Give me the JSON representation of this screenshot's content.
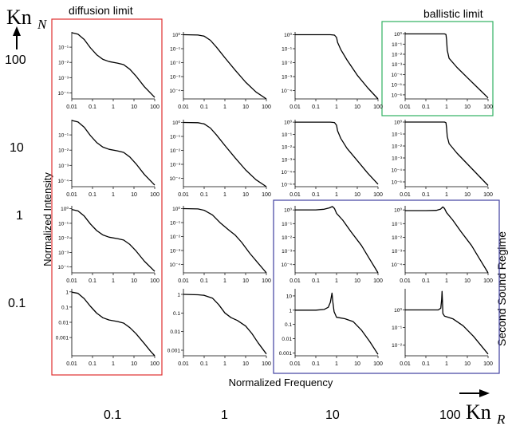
{
  "labels": {
    "y_axis_symbol": "Kn",
    "y_axis_sub": "N",
    "x_axis_symbol": "Kn",
    "x_axis_sub": "R",
    "diffusion_limit": "diffusion limit",
    "ballistic_limit": "ballistic limit",
    "second_sound": "Second Sound Regime",
    "ylabel": "Normalized Intensity",
    "xlabel": "Normalized Frequency"
  },
  "row_labels": [
    "100",
    "10",
    "1",
    "0.1"
  ],
  "col_labels": [
    "0.1",
    "1",
    "10",
    "100"
  ],
  "colors": {
    "diffusion_box": "#e03030",
    "ballistic_box": "#30b060",
    "second_sound_box": "#4040a0",
    "curve": "#000000"
  },
  "chart_data": {
    "type": "line",
    "layout": "4x4 grid of log-log plots",
    "x_ticks": [
      "0.01",
      "0.1",
      "1",
      "10",
      "100"
    ],
    "x_scale": "log",
    "y_scale": "log",
    "xlim": [
      0.01,
      100
    ],
    "panels": [
      {
        "row": 0,
        "col": 0,
        "yticks": [
          [
            -1,
            "10⁻¹"
          ],
          [
            -2,
            "10⁻²"
          ],
          [
            -3,
            "10⁻³"
          ],
          [
            -4,
            "10⁻⁴"
          ]
        ],
        "ylim": [
          -4.4,
          0
        ],
        "curve": [
          [
            -2,
            -0.05
          ],
          [
            -1.7,
            -0.15
          ],
          [
            -1.4,
            -0.5
          ],
          [
            -1.1,
            -1.05
          ],
          [
            -0.8,
            -1.5
          ],
          [
            -0.5,
            -1.8
          ],
          [
            -0.2,
            -1.95
          ],
          [
            0.2,
            -2.05
          ],
          [
            0.5,
            -2.15
          ],
          [
            0.8,
            -2.45
          ],
          [
            1.1,
            -2.9
          ],
          [
            1.5,
            -3.6
          ],
          [
            2,
            -4.3
          ]
        ]
      },
      {
        "row": 0,
        "col": 1,
        "yticks": [
          [
            0,
            "10⁰"
          ],
          [
            -1,
            "10⁻¹"
          ],
          [
            -2,
            "10⁻²"
          ],
          [
            -3,
            "10⁻³"
          ],
          [
            -4,
            "10⁻⁴"
          ]
        ],
        "ylim": [
          -4.6,
          0.2
        ],
        "curve": [
          [
            -2,
            0
          ],
          [
            -1.3,
            -0.02
          ],
          [
            -1,
            -0.1
          ],
          [
            -0.7,
            -0.4
          ],
          [
            -0.4,
            -0.9
          ],
          [
            0,
            -1.65
          ],
          [
            0.5,
            -2.55
          ],
          [
            1,
            -3.4
          ],
          [
            1.5,
            -4.1
          ],
          [
            2,
            -4.6
          ]
        ]
      },
      {
        "row": 0,
        "col": 2,
        "yticks": [
          [
            0,
            "10⁰"
          ],
          [
            -1,
            "10⁻¹"
          ],
          [
            -2,
            "10⁻²"
          ],
          [
            -3,
            "10⁻³"
          ],
          [
            -4,
            "10⁻⁴"
          ]
        ],
        "ylim": [
          -4.6,
          0.2
        ],
        "curve": [
          [
            -2,
            0
          ],
          [
            -0.3,
            0
          ],
          [
            -0.1,
            -0.03
          ],
          [
            0,
            -0.2
          ],
          [
            0.05,
            -0.55
          ],
          [
            0.2,
            -1.05
          ],
          [
            0.5,
            -1.8
          ],
          [
            1,
            -2.9
          ],
          [
            1.5,
            -3.8
          ],
          [
            2,
            -4.6
          ]
        ]
      },
      {
        "row": 0,
        "col": 3,
        "yticks": [
          [
            0,
            "10⁰"
          ],
          [
            -1,
            "10⁻¹"
          ],
          [
            -2,
            "10⁻²"
          ],
          [
            -3,
            "10⁻³"
          ],
          [
            -4,
            "10⁻⁴"
          ],
          [
            -5,
            "10⁻⁵"
          ],
          [
            -6,
            "10⁻⁶"
          ]
        ],
        "ylim": [
          -6.4,
          0.2
        ],
        "curve": [
          [
            -2,
            0
          ],
          [
            -0.1,
            0
          ],
          [
            -0.03,
            -0.05
          ],
          [
            0,
            -0.6
          ],
          [
            0.03,
            -1.6
          ],
          [
            0.12,
            -2.4
          ],
          [
            0.5,
            -3.3
          ],
          [
            1,
            -4.3
          ],
          [
            1.5,
            -5.3
          ],
          [
            2,
            -6.3
          ]
        ]
      },
      {
        "row": 1,
        "col": 0,
        "yticks": [
          [
            -1,
            "10⁻¹"
          ],
          [
            -2,
            "10⁻²"
          ],
          [
            -3,
            "10⁻³"
          ],
          [
            -4,
            "10⁻⁴"
          ]
        ],
        "ylim": [
          -4.4,
          0
        ],
        "curve": [
          [
            -2,
            -0.05
          ],
          [
            -1.7,
            -0.15
          ],
          [
            -1.4,
            -0.5
          ],
          [
            -1.1,
            -1.05
          ],
          [
            -0.8,
            -1.5
          ],
          [
            -0.5,
            -1.8
          ],
          [
            -0.2,
            -1.95
          ],
          [
            0.2,
            -2.05
          ],
          [
            0.5,
            -2.15
          ],
          [
            0.8,
            -2.45
          ],
          [
            1.1,
            -2.9
          ],
          [
            1.5,
            -3.6
          ],
          [
            2,
            -4.3
          ]
        ]
      },
      {
        "row": 1,
        "col": 1,
        "yticks": [
          [
            0,
            "10⁰"
          ],
          [
            -1,
            "10⁻¹"
          ],
          [
            -2,
            "10⁻²"
          ],
          [
            -3,
            "10⁻³"
          ],
          [
            -4,
            "10⁻⁴"
          ]
        ],
        "ylim": [
          -4.6,
          0.2
        ],
        "curve": [
          [
            -2,
            0
          ],
          [
            -1.3,
            -0.02
          ],
          [
            -1,
            -0.1
          ],
          [
            -0.7,
            -0.4
          ],
          [
            -0.4,
            -0.9
          ],
          [
            0,
            -1.65
          ],
          [
            0.5,
            -2.55
          ],
          [
            1,
            -3.4
          ],
          [
            1.5,
            -4.1
          ],
          [
            2,
            -4.6
          ]
        ]
      },
      {
        "row": 1,
        "col": 2,
        "yticks": [
          [
            0,
            "10⁰"
          ],
          [
            -1,
            "10⁻¹"
          ],
          [
            -2,
            "10⁻²"
          ],
          [
            -3,
            "10⁻³"
          ],
          [
            -4,
            "10⁻⁴"
          ],
          [
            -5,
            "10⁻⁵"
          ]
        ],
        "ylim": [
          -5.2,
          0.2
        ],
        "curve": [
          [
            -2,
            0
          ],
          [
            -0.3,
            0
          ],
          [
            -0.1,
            -0.03
          ],
          [
            0,
            -0.25
          ],
          [
            0.05,
            -0.7
          ],
          [
            0.2,
            -1.3
          ],
          [
            0.5,
            -2.1
          ],
          [
            1,
            -3.1
          ],
          [
            1.5,
            -4.1
          ],
          [
            2,
            -5
          ]
        ]
      },
      {
        "row": 1,
        "col": 3,
        "yticks": [
          [
            0,
            "10⁰"
          ],
          [
            -1,
            "10⁻¹"
          ],
          [
            -2,
            "10⁻²"
          ],
          [
            -3,
            "10⁻³"
          ],
          [
            -4,
            "10⁻⁴"
          ],
          [
            -5,
            "10⁻⁵"
          ]
        ],
        "ylim": [
          -5.4,
          0.2
        ],
        "curve": [
          [
            -2,
            0
          ],
          [
            -0.1,
            0
          ],
          [
            -0.03,
            -0.05
          ],
          [
            0,
            -0.5
          ],
          [
            0.03,
            -1.2
          ],
          [
            0.12,
            -1.8
          ],
          [
            0.5,
            -2.6
          ],
          [
            1,
            -3.5
          ],
          [
            1.5,
            -4.4
          ],
          [
            2,
            -5.3
          ]
        ]
      },
      {
        "row": 2,
        "col": 0,
        "yticks": [
          [
            0,
            "10⁰"
          ],
          [
            -1,
            "10⁻¹"
          ],
          [
            -2,
            "10⁻²"
          ],
          [
            -3,
            "10⁻³"
          ],
          [
            -4,
            "10⁻⁴"
          ]
        ],
        "ylim": [
          -4.4,
          0.2
        ],
        "curve": [
          [
            -2,
            -0.05
          ],
          [
            -1.7,
            -0.15
          ],
          [
            -1.4,
            -0.5
          ],
          [
            -1.1,
            -1.05
          ],
          [
            -0.8,
            -1.5
          ],
          [
            -0.5,
            -1.8
          ],
          [
            -0.2,
            -1.95
          ],
          [
            0.2,
            -2.05
          ],
          [
            0.5,
            -2.15
          ],
          [
            0.8,
            -2.45
          ],
          [
            1.1,
            -2.9
          ],
          [
            1.5,
            -3.6
          ],
          [
            2,
            -4.3
          ]
        ]
      },
      {
        "row": 2,
        "col": 1,
        "yticks": [
          [
            0,
            "10⁰"
          ],
          [
            -1,
            "10⁻¹"
          ],
          [
            -2,
            "10⁻²"
          ],
          [
            -3,
            "10⁻³"
          ],
          [
            -4,
            "10⁻⁴"
          ]
        ],
        "ylim": [
          -4.6,
          0.2
        ],
        "curve": [
          [
            -2,
            0
          ],
          [
            -1.3,
            -0.02
          ],
          [
            -1,
            -0.12
          ],
          [
            -0.6,
            -0.45
          ],
          [
            -0.2,
            -1.05
          ],
          [
            0.2,
            -1.55
          ],
          [
            0.5,
            -1.9
          ],
          [
            0.8,
            -2.4
          ],
          [
            1.2,
            -3.2
          ],
          [
            1.6,
            -3.9
          ],
          [
            2,
            -4.6
          ]
        ]
      },
      {
        "row": 2,
        "col": 2,
        "yticks": [
          [
            0,
            "10⁰"
          ],
          [
            -1,
            "10⁻¹"
          ],
          [
            -2,
            "10⁻²"
          ],
          [
            -3,
            "10⁻³"
          ],
          [
            -4,
            "10⁻⁴"
          ]
        ],
        "ylim": [
          -4.6,
          0.3
        ],
        "curve": [
          [
            -2,
            0
          ],
          [
            -1,
            0
          ],
          [
            -0.6,
            0.05
          ],
          [
            -0.35,
            0.15
          ],
          [
            -0.2,
            0.25
          ],
          [
            -0.1,
            0.1
          ],
          [
            0,
            -0.25
          ],
          [
            0.3,
            -0.75
          ],
          [
            0.7,
            -1.6
          ],
          [
            1.2,
            -2.6
          ],
          [
            1.6,
            -3.6
          ],
          [
            2,
            -4.6
          ]
        ]
      },
      {
        "row": 2,
        "col": 3,
        "yticks": [
          [
            0,
            "10⁰"
          ],
          [
            -1,
            "10⁻¹"
          ],
          [
            -2,
            "10⁻²"
          ],
          [
            -3,
            "10⁻³"
          ],
          [
            -4,
            "10⁻⁴"
          ]
        ],
        "ylim": [
          -4.6,
          0.3
        ],
        "curve": [
          [
            -2,
            -0.05
          ],
          [
            -1,
            -0.05
          ],
          [
            -0.5,
            -0.03
          ],
          [
            -0.3,
            0.05
          ],
          [
            -0.18,
            0.22
          ],
          [
            -0.1,
            0.1
          ],
          [
            0,
            -0.2
          ],
          [
            0.3,
            -0.75
          ],
          [
            0.7,
            -1.6
          ],
          [
            1.2,
            -2.6
          ],
          [
            1.6,
            -3.6
          ],
          [
            2,
            -4.6
          ]
        ]
      },
      {
        "row": 3,
        "col": 0,
        "yticks": [
          [
            0,
            "1"
          ],
          [
            -1,
            "0.1"
          ],
          [
            -2,
            "0.01"
          ],
          [
            -3,
            "0.001"
          ]
        ],
        "ylim": [
          -4.2,
          0.2
        ],
        "curve": [
          [
            -2,
            -0.02
          ],
          [
            -1.7,
            -0.1
          ],
          [
            -1.4,
            -0.45
          ],
          [
            -1.1,
            -0.95
          ],
          [
            -0.8,
            -1.4
          ],
          [
            -0.5,
            -1.7
          ],
          [
            -0.2,
            -1.85
          ],
          [
            0.2,
            -1.95
          ],
          [
            0.5,
            -2.05
          ],
          [
            0.8,
            -2.35
          ],
          [
            1.1,
            -2.75
          ],
          [
            1.5,
            -3.4
          ],
          [
            1.8,
            -3.9
          ],
          [
            2,
            -4.2
          ]
        ]
      },
      {
        "row": 3,
        "col": 1,
        "yticks": [
          [
            0,
            "1"
          ],
          [
            -1,
            "0.1"
          ],
          [
            -2,
            "0.01"
          ],
          [
            -3,
            "0.001"
          ]
        ],
        "ylim": [
          -3.3,
          0.3
        ],
        "curve": [
          [
            -2,
            0
          ],
          [
            -1.3,
            -0.02
          ],
          [
            -1,
            -0.05
          ],
          [
            -0.6,
            -0.2
          ],
          [
            -0.3,
            -0.55
          ],
          [
            0,
            -1
          ],
          [
            0.3,
            -1.25
          ],
          [
            0.6,
            -1.4
          ],
          [
            1,
            -1.7
          ],
          [
            1.3,
            -2.1
          ],
          [
            1.6,
            -2.6
          ],
          [
            2,
            -3.2
          ]
        ]
      },
      {
        "row": 3,
        "col": 2,
        "yticks": [
          [
            1,
            "10"
          ],
          [
            0,
            "1"
          ],
          [
            -1,
            "0.1"
          ],
          [
            -2,
            "0.01"
          ],
          [
            -3,
            "0.001"
          ]
        ],
        "ylim": [
          -3.2,
          1.5
        ],
        "curve": [
          [
            -2,
            0
          ],
          [
            -1,
            0
          ],
          [
            -0.6,
            0.05
          ],
          [
            -0.4,
            0.2
          ],
          [
            -0.3,
            0.55
          ],
          [
            -0.22,
            1.2
          ],
          [
            -0.18,
            0.6
          ],
          [
            -0.12,
            -0.1
          ],
          [
            0,
            -0.5
          ],
          [
            0.4,
            -0.6
          ],
          [
            0.8,
            -0.8
          ],
          [
            1.2,
            -1.4
          ],
          [
            1.6,
            -2.2
          ],
          [
            2,
            -3.1
          ]
        ]
      },
      {
        "row": 3,
        "col": 3,
        "yticks": [
          [
            0,
            "10⁰"
          ],
          [
            -1,
            "10⁻¹"
          ],
          [
            -2,
            "10⁻²"
          ]
        ],
        "ylim": [
          -2.6,
          1.2
        ],
        "curve": [
          [
            -2,
            0
          ],
          [
            -0.8,
            0
          ],
          [
            -0.4,
            0
          ],
          [
            -0.28,
            0.1
          ],
          [
            -0.24,
            0.6
          ],
          [
            -0.22,
            1.05
          ],
          [
            -0.2,
            0.5
          ],
          [
            -0.18,
            -0.2
          ],
          [
            -0.1,
            -0.35
          ],
          [
            0.3,
            -0.5
          ],
          [
            0.8,
            -0.9
          ],
          [
            1.3,
            -1.5
          ],
          [
            2,
            -2.5
          ]
        ]
      }
    ]
  }
}
